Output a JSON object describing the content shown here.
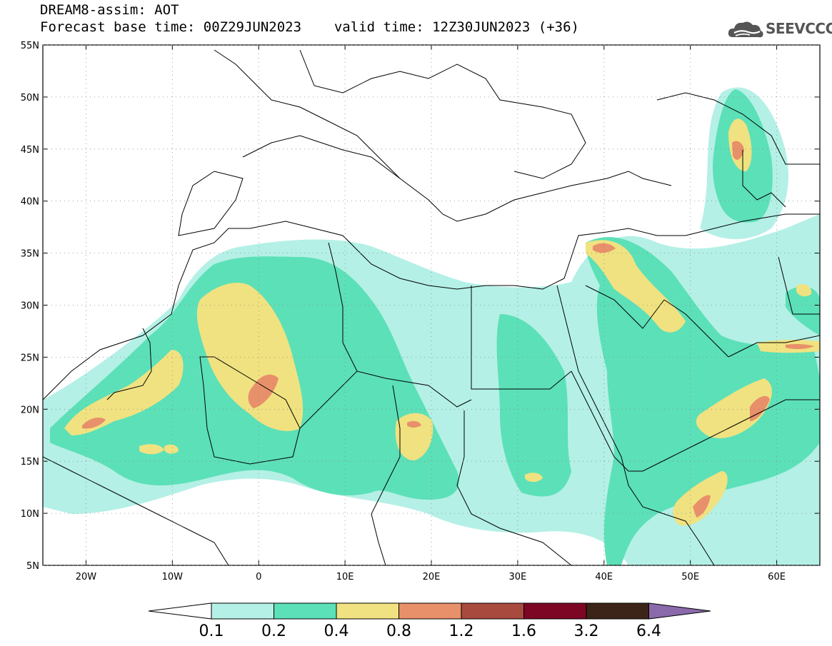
{
  "header": {
    "line1": "DREAM8-assim: AOT",
    "line2_base": "Forecast base time: 00Z29JUN2023",
    "line2_valid": "valid time: 12Z30JUN2023 (+36)"
  },
  "logo": {
    "text": "SEEVCCC",
    "icon": "cloud-icon"
  },
  "map": {
    "lon_range": [
      -25,
      65
    ],
    "lat_range": [
      5,
      55
    ],
    "lon_ticks": [
      {
        "value": -20,
        "label": "20W"
      },
      {
        "value": -10,
        "label": "10W"
      },
      {
        "value": 0,
        "label": "0"
      },
      {
        "value": 10,
        "label": "10E"
      },
      {
        "value": 20,
        "label": "20E"
      },
      {
        "value": 30,
        "label": "30E"
      },
      {
        "value": 40,
        "label": "40E"
      },
      {
        "value": 50,
        "label": "50E"
      },
      {
        "value": 60,
        "label": "60E"
      }
    ],
    "lat_ticks": [
      {
        "value": 55,
        "label": "55N"
      },
      {
        "value": 50,
        "label": "50N"
      },
      {
        "value": 45,
        "label": "45N"
      },
      {
        "value": 40,
        "label": "40N"
      },
      {
        "value": 35,
        "label": "35N"
      },
      {
        "value": 30,
        "label": "30N"
      },
      {
        "value": 25,
        "label": "25N"
      },
      {
        "value": 20,
        "label": "20N"
      },
      {
        "value": 15,
        "label": "15N"
      },
      {
        "value": 10,
        "label": "10N"
      },
      {
        "value": 5,
        "label": "5N"
      }
    ]
  },
  "colorbar": {
    "colors": [
      "#b4f0e6",
      "#5ce0b8",
      "#f0e280",
      "#e8906a",
      "#a84a3e",
      "#7c0624",
      "#3c2418"
    ],
    "over_color": "#8a6aaa",
    "under_color": "#ffffff",
    "labels": [
      "0.1",
      "0.2",
      "0.4",
      "0.8",
      "1.2",
      "1.6",
      "3.2",
      "6.4"
    ]
  }
}
